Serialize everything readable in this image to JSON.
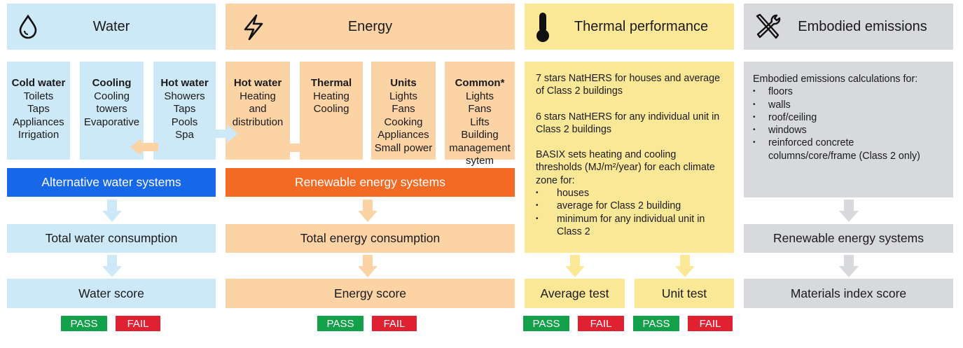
{
  "colors": {
    "water_light": "#cde8f7",
    "water_dark": "#1768e8",
    "energy_light": "#fcd3a4",
    "energy_dark": "#f26a23",
    "thermal": "#fbe897",
    "embodied": "#d7d9dc",
    "pass": "#12a14a",
    "fail": "#e02131"
  },
  "headers": {
    "water": "Water",
    "energy": "Energy",
    "thermal": "Thermal performance",
    "embodied": "Embodied emissions"
  },
  "icons": {
    "water": "water-drop-icon",
    "energy": "lightning-bolt-icon",
    "thermal": "thermometer-icon",
    "embodied": "tools-icon"
  },
  "water_uses": [
    {
      "title": "Cold water",
      "items": [
        "Toilets",
        "Taps",
        "Appliances",
        "Irrigation"
      ]
    },
    {
      "title": "Cooling",
      "items": [
        "Cooling",
        "towers",
        "Evaporative"
      ]
    },
    {
      "title": "Hot water",
      "items": [
        "Showers",
        "Taps",
        "Pools",
        "Spa"
      ]
    }
  ],
  "energy_uses": [
    {
      "title": "Hot water",
      "items": [
        "Heating",
        "and",
        "distribution"
      ]
    },
    {
      "title": "Thermal",
      "items": [
        "Heating",
        "Cooling"
      ]
    },
    {
      "title": "Units",
      "items": [
        "Lights",
        "Fans",
        "Cooking",
        "Appliances",
        "Small power"
      ]
    },
    {
      "title": "Common*",
      "items": [
        "Lights",
        "Fans",
        "Lifts",
        "Building",
        "management",
        "sytem"
      ]
    }
  ],
  "thermal": {
    "p1": "7 stars NatHERS for houses and average of Class 2 buildings",
    "p2": "6 stars NatHERS for any individual unit in Class 2 buildings",
    "p3": "BASIX sets heating and cooling thresholds (MJ/m²/year) for each climate zone for:",
    "bullets": [
      "houses",
      "average for Class 2 building",
      "minimum for any individual unit in Class 2"
    ]
  },
  "embodied": {
    "intro": "Embodied emissions calculations for:",
    "bullets": [
      "floors",
      "walls",
      "roof/ceiling",
      "windows",
      "reinforced concrete columns/core/frame (Class 2 only)"
    ]
  },
  "bars": {
    "alt_water": "Alternative water systems",
    "renew_energy": "Renewable energy systems",
    "total_water": "Total water consumption",
    "total_energy": "Total energy consumption",
    "embodied_renew": "Renewable energy systems",
    "water_score": "Water score",
    "energy_score": "Energy score",
    "average_test": "Average test",
    "unit_test": "Unit test",
    "materials_score": "Materials index score"
  },
  "badges": {
    "pass": "PASS",
    "fail": "FAIL"
  }
}
